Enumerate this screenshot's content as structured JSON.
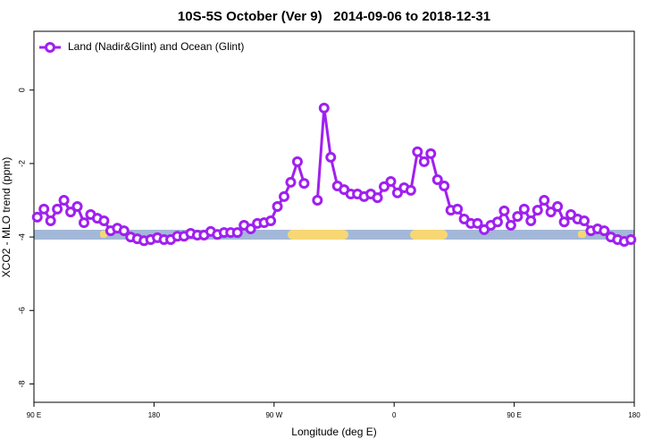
{
  "chart_data": {
    "type": "line",
    "title": "10S-5S October (Ver 9)   2014-09-06 to 2018-12-31",
    "xlabel": "Longitude (deg E)",
    "ylabel": "XCO2 - MLO trend (ppm)",
    "x": [
      92.5,
      97.5,
      102.5,
      107.5,
      112.5,
      117.5,
      122.5,
      127.5,
      132.5,
      137.5,
      142.5,
      147.5,
      152.5,
      157.5,
      162.5,
      167.5,
      172.5,
      177.5,
      182.5,
      187.5,
      192.5,
      197.5,
      202.5,
      207.5,
      212.5,
      217.5,
      222.5,
      227.5,
      232.5,
      237.5,
      242.5,
      247.5,
      252.5,
      257.5,
      262.5,
      267.5,
      272.5,
      277.5,
      282.5,
      287.5,
      292.5,
      297.5,
      302.5,
      307.5,
      312.5,
      317.5,
      322.5,
      327.5,
      332.5,
      337.5,
      342.5,
      347.5,
      352.5,
      357.5,
      362.5,
      367.5,
      372.5,
      377.5,
      382.5,
      387.5,
      392.5,
      397.5,
      402.5,
      407.5,
      412.5,
      417.5,
      422.5,
      427.5,
      432.5,
      437.5,
      442.5,
      447.5,
      452.5,
      457.5,
      462.5,
      467.5,
      472.5,
      477.5,
      482.5,
      487.5,
      492.5,
      497.5,
      502.5,
      507.5,
      512.5,
      517.5,
      522.5,
      527.5,
      532.5,
      537.5
    ],
    "series": [
      {
        "name": "Land (Nadir&Glint) and Ocean (Glint)",
        "color": "#a020f0",
        "values": [
          -3.46,
          -3.24,
          -3.56,
          -3.24,
          -3.0,
          -3.32,
          -3.17,
          -3.61,
          -3.39,
          -3.49,
          -3.56,
          -3.83,
          -3.76,
          -3.83,
          -4.0,
          -4.05,
          -4.1,
          -4.07,
          -4.02,
          -4.07,
          -4.07,
          -3.98,
          -3.98,
          -3.9,
          -3.95,
          -3.95,
          -3.85,
          -3.93,
          -3.88,
          -3.88,
          -3.88,
          -3.68,
          -3.78,
          -3.63,
          -3.61,
          -3.56,
          -3.17,
          -2.9,
          -2.51,
          -1.95,
          -2.54,
          null,
          -3.0,
          -0.49,
          -1.83,
          -2.61,
          -2.71,
          -2.83,
          -2.83,
          -2.9,
          -2.83,
          -2.93,
          -2.63,
          -2.49,
          -2.8,
          -2.66,
          -2.73,
          -1.68,
          -1.95,
          -1.73,
          -2.44,
          -2.61,
          -3.27,
          -3.24,
          -3.51,
          -3.63,
          -3.63,
          -3.8,
          -3.68,
          -3.59,
          -3.29,
          -3.68,
          -3.44,
          -3.24,
          -3.56,
          -3.27,
          -3.0,
          -3.32,
          -3.17,
          -3.59,
          -3.39,
          -3.51,
          -3.56,
          -3.83,
          -3.78,
          -3.83,
          -4.0,
          -4.07,
          -4.12,
          -4.07
        ]
      }
    ],
    "xlim": [
      90,
      540
    ],
    "xticks": [
      {
        "value": 90,
        "label": "90 E"
      },
      180,
      {
        "value": 270,
        "label": "90 W"
      },
      {
        "value": 360,
        "label": "0"
      },
      {
        "value": 450,
        "label": "90 E"
      },
      {
        "value": 540,
        "label": "180"
      }
    ],
    "ylim": [
      -8.5,
      1.6
    ],
    "yticks": [
      -8,
      -6,
      -4,
      -2,
      0
    ],
    "legend": "top-left"
  }
}
